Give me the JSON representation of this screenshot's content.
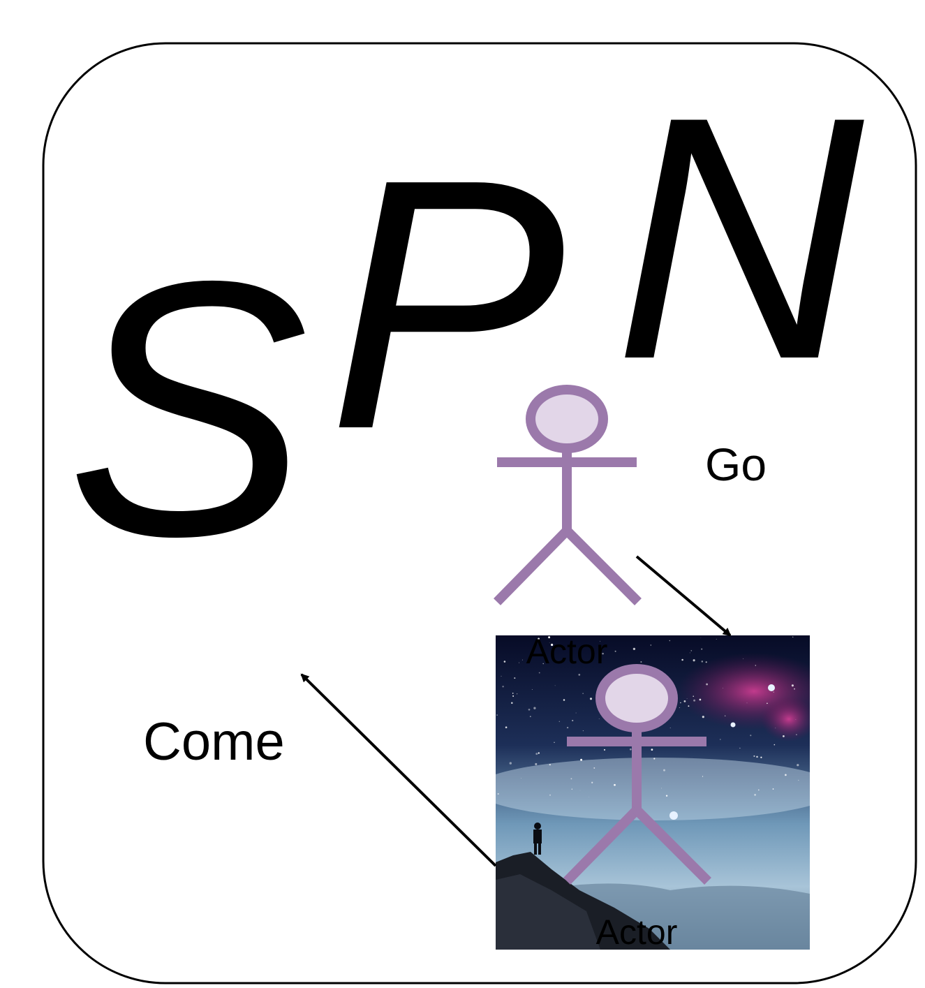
{
  "logo": {
    "letters": [
      "S",
      "P",
      "N"
    ]
  },
  "labels": {
    "go": "Go",
    "come": "Come"
  },
  "actors": [
    {
      "label": "Actor"
    },
    {
      "label": "Actor"
    }
  ],
  "colors": {
    "actor_stroke": "#9b79ab",
    "actor_head_fill": "#e2d6e8",
    "frame_stroke": "#000000",
    "arrow": "#000000",
    "sky_dark": "#0a1030",
    "sky_mid": "#2a4a70",
    "mist": "#9fc0d6",
    "nebula": "#c0307a"
  },
  "icons": {
    "actor": "stick-figure-icon",
    "arrow": "arrow-icon",
    "background_image": "night-sky-mountain-image"
  }
}
